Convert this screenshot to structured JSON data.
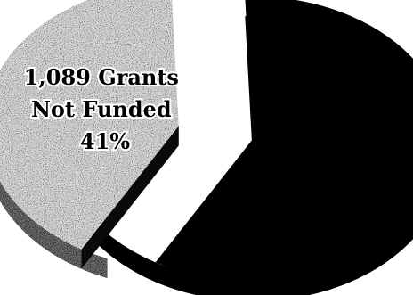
{
  "colors": {
    "background": "#ffffff",
    "funded_slice": "#000000",
    "not_funded_slice": "stipple-light-grey",
    "label_text": "#000000"
  },
  "chart_data": {
    "type": "pie",
    "style": "3d-exploded",
    "title": "",
    "slices": [
      {
        "key": "not_funded",
        "label_lines": [
          "1,089 Grants",
          "Not Funded",
          "41%"
        ],
        "count": 1089,
        "percent": 41,
        "color": "stipple-light-grey",
        "exploded": true
      },
      {
        "key": "funded",
        "label_lines": [],
        "percent": 59,
        "color": "#000000",
        "exploded": false
      }
    ]
  }
}
